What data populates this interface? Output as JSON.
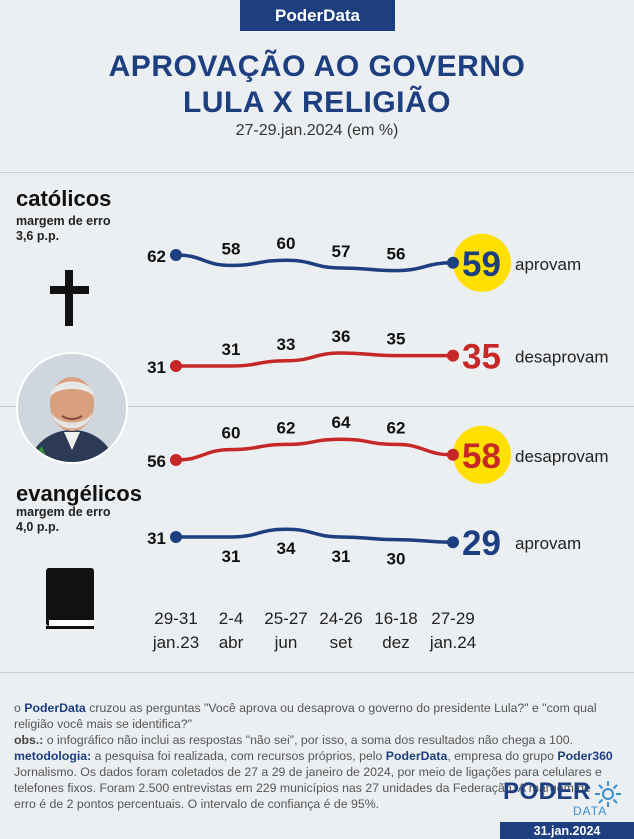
{
  "brand": {
    "name": "PoderData"
  },
  "header": {
    "title_line1": "APROVAÇÃO AO GOVERNO",
    "title_line2": "LULA X RELIGIÃO",
    "subtitle": "27-29.jan.2024 (em %)"
  },
  "groups": {
    "catholic": {
      "label": "católicos",
      "moe_line1": "margem de erro",
      "moe_line2": "3,6 p.p."
    },
    "evangelical": {
      "label": "evangélicos",
      "moe_line1": "margem de erro",
      "moe_line2": "4,0 p.p."
    }
  },
  "colors": {
    "approve": "#1d3f80",
    "disapprove": "#c62828",
    "highlight": "#ffe000"
  },
  "chart_data": {
    "type": "line",
    "x": [
      "29-31 jan.23",
      "2-4 abr",
      "25-27 jun",
      "24-26 set",
      "16-18 dez",
      "27-29 jan.24"
    ],
    "x_lines": [
      [
        "29-31",
        "jan.23"
      ],
      [
        "2-4",
        "abr"
      ],
      [
        "25-27",
        "jun"
      ],
      [
        "24-26",
        "set"
      ],
      [
        "16-18",
        "dez"
      ],
      [
        "27-29",
        "jan.24"
      ]
    ],
    "panels": [
      {
        "group": "católicos",
        "series": [
          {
            "name": "aprovam",
            "values": [
              62,
              58,
              60,
              57,
              56,
              59
            ],
            "highlight_last": true
          },
          {
            "name": "desaprovam",
            "values": [
              31,
              31,
              33,
              36,
              35,
              35
            ],
            "highlight_last": false
          }
        ]
      },
      {
        "group": "evangélicos",
        "series": [
          {
            "name": "desaprovam",
            "values": [
              56,
              60,
              62,
              64,
              62,
              58
            ],
            "highlight_last": true
          },
          {
            "name": "aprovam",
            "values": [
              31,
              31,
              34,
              31,
              30,
              29
            ],
            "highlight_last": false
          }
        ]
      }
    ]
  },
  "notes": {
    "p1_pre": "o ",
    "p1_brand": "PoderData",
    "p1_text": " cruzou as perguntas \"Você aprova ou desaprova o governo do presidente Lula?\" e \"com qual religião você mais se identifica?\"",
    "obs_label": "obs.:",
    "obs_text": " o infográfico não inclui as respostas \"não sei\", por isso, a soma dos resultados não chega a 100.",
    "met_label": "metodologia:",
    "met_text1": " a pesquisa foi realizada, com recursos próprios, pelo ",
    "met_brand": "PoderData",
    "met_text2": ", empresa do grupo ",
    "met_brand2": "Poder360",
    "met_text3": " Jornalismo. Os dados foram coletados de 27 a 29 de janeiro de 2024, por meio de ligações para celulares e telefones fixos. Foram 2.500 entrevistas em 229 municípios nas 27 unidades da Federação. A margem de erro é de 2 pontos percentuais. O intervalo de confiança é de 95%."
  },
  "footer": {
    "logo_top": "PODER",
    "logo_bottom": "DATA",
    "date": "31.jan.2024"
  }
}
